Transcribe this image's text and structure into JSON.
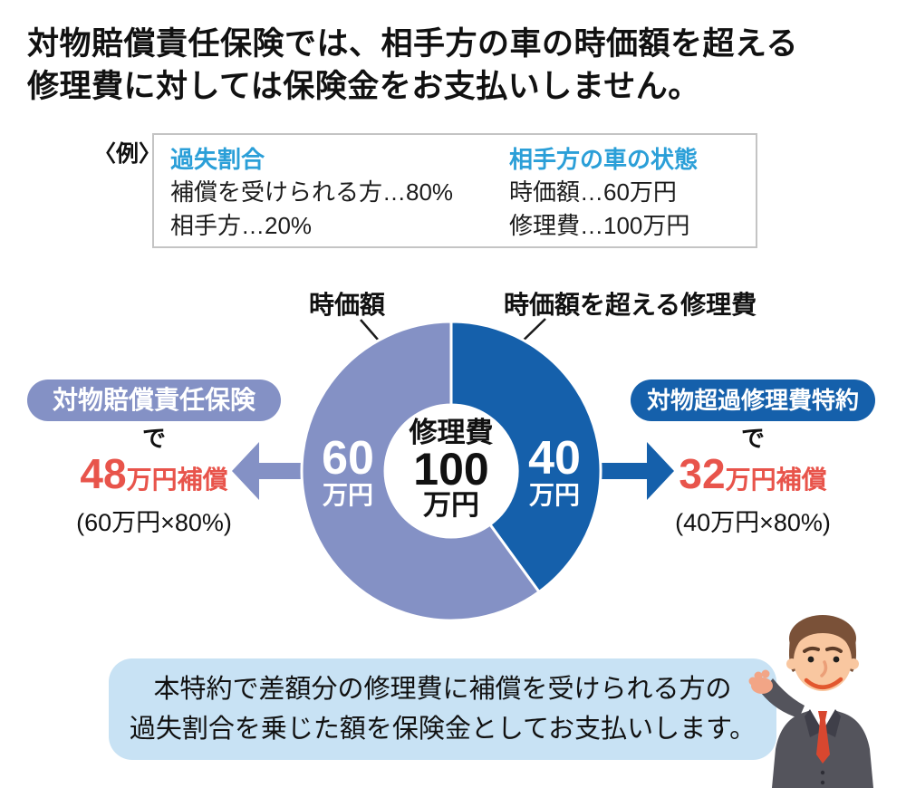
{
  "title": {
    "line1": "対物賠償責任保険では、相手方の車の時価額を超える",
    "line2": "修理費に対しては保険金をお支払いしません。"
  },
  "example": {
    "tag": "〈例〉",
    "columns": [
      {
        "header": "過失割合",
        "rows": [
          "補償を受けられる方…80%",
          "相手方…20%"
        ]
      },
      {
        "header": "相手方の車の状態",
        "rows": [
          "時価額…60万円",
          "修理費…100万円"
        ]
      }
    ]
  },
  "chart_data": {
    "type": "pie",
    "donut": true,
    "categories": [
      "時価額",
      "時価額を超える修理費"
    ],
    "values": [
      60,
      40
    ],
    "unit": "万円",
    "colors": [
      "#8491c5",
      "#1560ab"
    ],
    "clockwise_from_top": [
      1,
      0
    ],
    "segment_value_labels": [
      {
        "value": "60",
        "unit": "万円"
      },
      {
        "value": "40",
        "unit": "万円"
      }
    ],
    "center_label": [
      "修理費",
      "100",
      "万円"
    ],
    "legend_position": "callouts-top",
    "grid": false
  },
  "results": {
    "left": {
      "badge": "対物賠償責任保険",
      "connector": "で",
      "amount_big": "48",
      "amount_rest": "万円補償",
      "formula": "(60万円×80%)"
    },
    "right": {
      "badge": "対物超過修理費特約",
      "connector": "で",
      "amount_big": "32",
      "amount_rest": "万円補償",
      "formula": "(40万円×80%)"
    }
  },
  "footer": {
    "line1": "本特約で差額分の修理費に補償を受けられる方の",
    "line2": "過失割合を乗じた額を保険金としてお支払いします。"
  },
  "icons": {
    "mascot": "businessman"
  },
  "colors": {
    "brand_light": "#8491c5",
    "brand_dark": "#1560ab",
    "accent_red": "#e8544b",
    "header_blue": "#2b9fd8",
    "note_bg": "#c8e2f4",
    "ink": "#1a1a1a",
    "border": "#c4c4c4"
  }
}
